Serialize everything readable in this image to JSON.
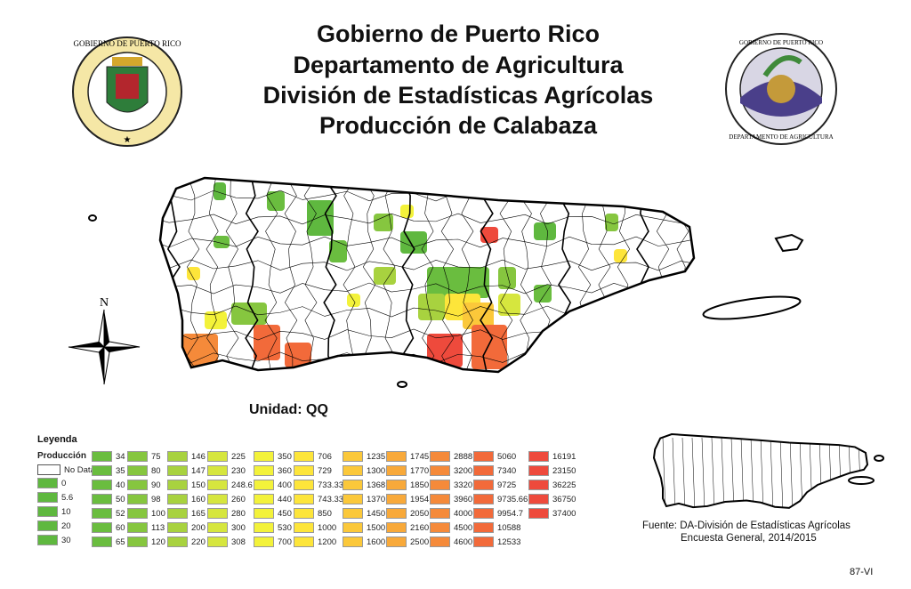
{
  "header": {
    "lines": [
      "Gobierno de Puerto Rico",
      "Departamento de Agricultura",
      "División de Estadísticas Agrícolas",
      "Producción de Calabaza"
    ]
  },
  "seals": {
    "left_text": "GOBIERNO DE PUERTO RICO",
    "right_text": "GOBIERNO DE PUERTO RICO · DEPARTAMENTO DE AGRICULTURA"
  },
  "compass": {
    "north": "N"
  },
  "unit": "Unidad: QQ",
  "legend": {
    "title": "Leyenda",
    "field": "Producción",
    "no_data": "No Data",
    "columns": [
      [
        "0",
        "5.6",
        "10",
        "20",
        "30"
      ],
      [
        "34",
        "35",
        "40",
        "50",
        "52",
        "60",
        "65"
      ],
      [
        "75",
        "80",
        "90",
        "98",
        "100",
        "113",
        "120"
      ],
      [
        "146",
        "147",
        "150",
        "160",
        "165",
        "200",
        "220"
      ],
      [
        "225",
        "230",
        "248.6",
        "260",
        "280",
        "300",
        "308"
      ],
      [
        "350",
        "360",
        "400",
        "440",
        "450",
        "530",
        "700"
      ],
      [
        "706",
        "729",
        "733.33",
        "743.33",
        "850",
        "1000",
        "1200"
      ],
      [
        "1235",
        "1300",
        "1368",
        "1370",
        "1450",
        "1500",
        "1600"
      ],
      [
        "1745",
        "1770",
        "1850",
        "1954",
        "2050",
        "2160",
        "2500"
      ],
      [
        "2888",
        "3200",
        "3320",
        "3960",
        "4000",
        "4500",
        "4600"
      ],
      [
        "5060",
        "7340",
        "9725",
        "9735.66",
        "9954.7",
        "10588",
        "12533"
      ],
      [
        "16191",
        "23150",
        "36225",
        "36750",
        "37400"
      ]
    ],
    "column_colors": [
      "#5fb83f",
      "#6abd3f",
      "#86c63f",
      "#a8d23f",
      "#d6e63e",
      "#f3f23a",
      "#fde53a",
      "#fbc83a",
      "#f8a93a",
      "#f58a3a",
      "#f26a3a",
      "#ee4a3c"
    ]
  },
  "source": {
    "line1": "Fuente: DA-División de Estadísticas Agrícolas",
    "line2": "Encuesta General, 2014/2015"
  },
  "page_code": "87-VI"
}
